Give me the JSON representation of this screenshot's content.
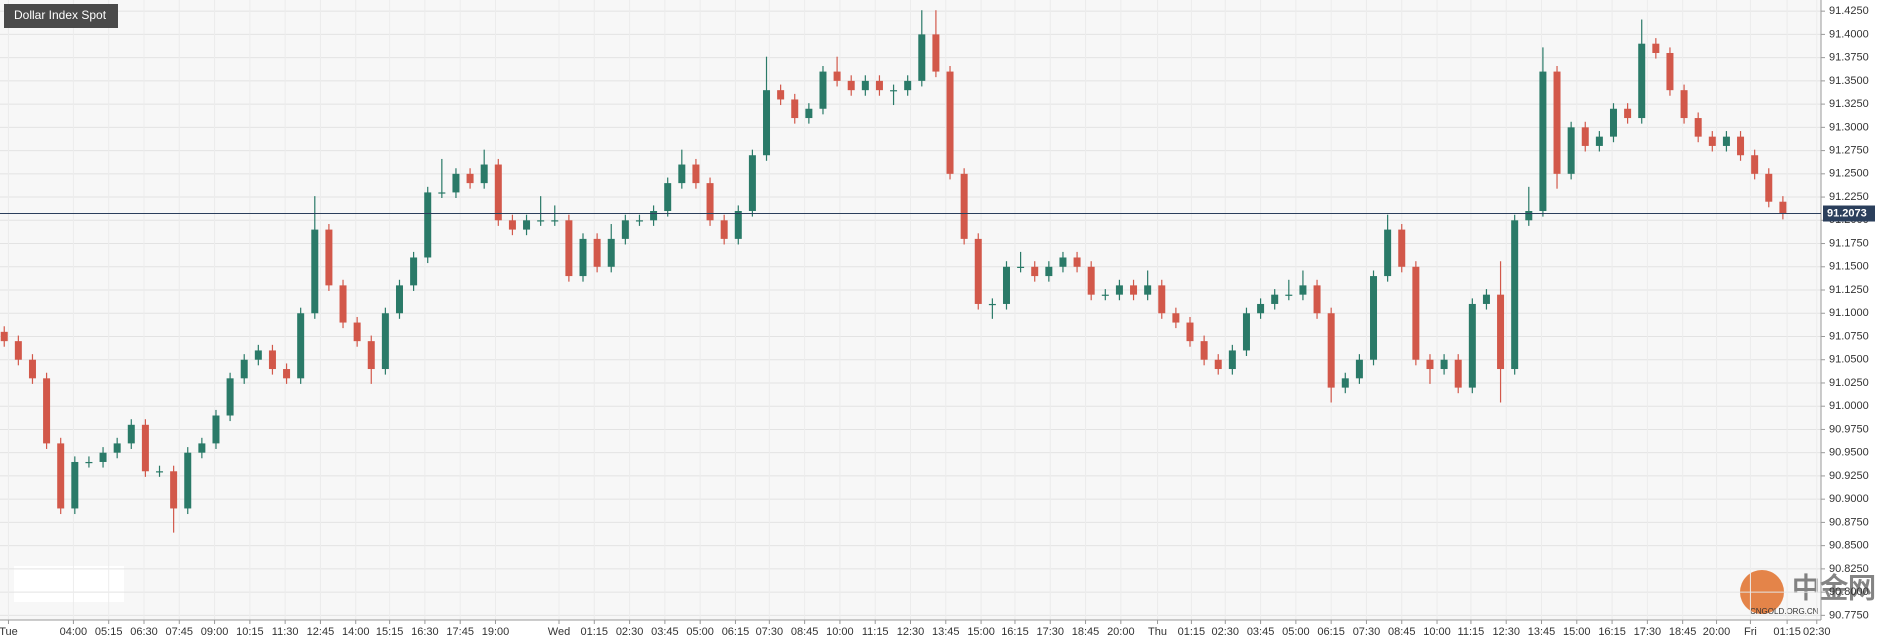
{
  "chart_data": {
    "type": "candlestick",
    "title": "Dollar Index Spot",
    "x": [
      0,
      1,
      2,
      3,
      4,
      5,
      6,
      7,
      8,
      9,
      10,
      11,
      12,
      13,
      14,
      15,
      16,
      17,
      18,
      19,
      20,
      21,
      22,
      23,
      24,
      25,
      26,
      27,
      28,
      29,
      30,
      31,
      32,
      33,
      34,
      35,
      36,
      37,
      38,
      39,
      40,
      41,
      42,
      43,
      44,
      45,
      46,
      47,
      48,
      49,
      50,
      51,
      52,
      53,
      54,
      55,
      56,
      57,
      58,
      59,
      60,
      61,
      62,
      63,
      64,
      65,
      66,
      67,
      68,
      69,
      70,
      71,
      72,
      73,
      74,
      75,
      76,
      77,
      78,
      79,
      80,
      81,
      82,
      83,
      84,
      85,
      86,
      87,
      88,
      89,
      90,
      91,
      92,
      93,
      94,
      95,
      96,
      97,
      98,
      99,
      100,
      101,
      102,
      103,
      104,
      105,
      106,
      107,
      108,
      109,
      110,
      111,
      112,
      113,
      114,
      115,
      116,
      117,
      118,
      119,
      120,
      121,
      122,
      123,
      124,
      125,
      126
    ],
    "open": [
      91.08,
      91.07,
      91.05,
      91.03,
      90.96,
      90.89,
      90.94,
      90.94,
      90.95,
      90.96,
      90.98,
      90.93,
      90.93,
      90.89,
      90.95,
      90.96,
      90.99,
      91.03,
      91.05,
      91.06,
      91.04,
      91.03,
      91.1,
      91.19,
      91.13,
      91.09,
      91.07,
      91.04,
      91.1,
      91.13,
      91.16,
      91.23,
      91.23,
      91.25,
      91.24,
      91.26,
      91.2,
      91.19,
      91.2,
      91.2,
      91.2,
      91.14,
      91.18,
      91.15,
      91.18,
      91.2,
      91.2,
      91.21,
      91.24,
      91.26,
      91.24,
      91.2,
      91.18,
      91.21,
      91.27,
      91.34,
      91.33,
      91.31,
      91.32,
      91.36,
      91.35,
      91.34,
      91.35,
      91.34,
      91.34,
      91.35,
      91.4,
      91.36,
      91.25,
      91.18,
      91.11,
      91.11,
      91.15,
      91.15,
      91.14,
      91.15,
      91.16,
      91.15,
      91.12,
      91.12,
      91.13,
      91.12,
      91.13,
      91.1,
      91.09,
      91.07,
      91.05,
      91.04,
      91.06,
      91.1,
      91.11,
      91.12,
      91.12,
      91.13,
      91.1,
      91.02,
      91.03,
      91.05,
      91.14,
      91.19,
      91.15,
      91.05,
      91.04,
      91.05,
      91.02,
      91.11,
      91.12,
      91.04,
      91.2,
      91.21,
      91.36,
      91.25,
      91.3,
      91.28,
      91.29,
      91.32,
      91.31,
      91.39,
      91.38,
      91.34,
      91.31,
      91.29,
      91.28,
      91.29,
      91.27,
      91.25,
      91.22
    ],
    "high": [
      91.086,
      91.076,
      91.056,
      91.036,
      90.966,
      90.946,
      90.946,
      90.956,
      90.966,
      90.986,
      90.986,
      90.936,
      90.936,
      90.956,
      90.966,
      90.996,
      91.036,
      91.056,
      91.066,
      91.066,
      91.046,
      91.106,
      91.226,
      91.196,
      91.136,
      91.096,
      91.076,
      91.106,
      91.136,
      91.166,
      91.236,
      91.266,
      91.256,
      91.256,
      91.276,
      91.266,
      91.206,
      91.206,
      91.226,
      91.216,
      91.206,
      91.186,
      91.186,
      91.196,
      91.206,
      91.206,
      91.216,
      91.246,
      91.276,
      91.266,
      91.246,
      91.206,
      91.216,
      91.276,
      91.376,
      91.346,
      91.336,
      91.326,
      91.366,
      91.376,
      91.356,
      91.356,
      91.356,
      91.346,
      91.356,
      91.426,
      91.426,
      91.366,
      91.256,
      91.186,
      91.116,
      91.156,
      91.166,
      91.156,
      91.156,
      91.166,
      91.166,
      91.156,
      91.126,
      91.136,
      91.136,
      91.146,
      91.136,
      91.106,
      91.096,
      91.076,
      91.056,
      91.066,
      91.106,
      91.116,
      91.126,
      91.136,
      91.146,
      91.136,
      91.106,
      91.036,
      91.056,
      91.146,
      91.206,
      91.196,
      91.156,
      91.056,
      91.056,
      91.056,
      91.116,
      91.126,
      91.156,
      91.206,
      91.236,
      91.386,
      91.366,
      91.306,
      91.306,
      91.296,
      91.326,
      91.326,
      91.416,
      91.396,
      91.386,
      91.346,
      91.316,
      91.296,
      91.296,
      91.296,
      91.276,
      91.256,
      91.226
    ],
    "low": [
      91.064,
      91.044,
      91.024,
      90.954,
      90.884,
      90.884,
      90.934,
      90.934,
      90.944,
      90.954,
      90.924,
      90.924,
      90.864,
      90.884,
      90.944,
      90.954,
      90.984,
      91.024,
      91.044,
      91.034,
      91.024,
      91.024,
      91.094,
      91.124,
      91.084,
      91.064,
      91.024,
      91.034,
      91.094,
      91.124,
      91.154,
      91.224,
      91.224,
      91.234,
      91.234,
      91.194,
      91.184,
      91.184,
      91.194,
      91.194,
      91.134,
      91.134,
      91.144,
      91.144,
      91.174,
      91.194,
      91.194,
      91.204,
      91.234,
      91.234,
      91.194,
      91.174,
      91.174,
      91.204,
      91.264,
      91.324,
      91.304,
      91.304,
      91.314,
      91.344,
      91.334,
      91.334,
      91.334,
      91.324,
      91.334,
      91.344,
      91.354,
      91.244,
      91.174,
      91.104,
      91.094,
      91.104,
      91.144,
      91.134,
      91.134,
      91.144,
      91.144,
      91.114,
      91.114,
      91.114,
      91.114,
      91.114,
      91.094,
      91.084,
      91.064,
      91.044,
      91.034,
      91.034,
      91.054,
      91.094,
      91.104,
      91.114,
      91.114,
      91.094,
      91.004,
      91.014,
      91.024,
      91.044,
      91.134,
      91.144,
      91.044,
      91.024,
      91.034,
      91.014,
      91.014,
      91.104,
      91.004,
      91.034,
      91.194,
      91.204,
      91.234,
      91.244,
      91.274,
      91.274,
      91.284,
      91.304,
      91.304,
      91.374,
      91.334,
      91.304,
      91.284,
      91.274,
      91.274,
      91.264,
      91.244,
      91.214,
      91.201
    ],
    "close": [
      91.07,
      91.05,
      91.03,
      90.96,
      90.89,
      90.94,
      90.94,
      90.95,
      90.96,
      90.98,
      90.93,
      90.93,
      90.89,
      90.95,
      90.96,
      90.99,
      91.03,
      91.05,
      91.06,
      91.04,
      91.03,
      91.1,
      91.19,
      91.13,
      91.09,
      91.07,
      91.04,
      91.1,
      91.13,
      91.16,
      91.23,
      91.23,
      91.25,
      91.24,
      91.26,
      91.2,
      91.19,
      91.2,
      91.2,
      91.2,
      91.14,
      91.18,
      91.15,
      91.18,
      91.2,
      91.2,
      91.21,
      91.24,
      91.26,
      91.24,
      91.2,
      91.18,
      91.21,
      91.27,
      91.34,
      91.33,
      91.31,
      91.32,
      91.36,
      91.35,
      91.34,
      91.35,
      91.34,
      91.34,
      91.35,
      91.4,
      91.36,
      91.25,
      91.18,
      91.11,
      91.11,
      91.15,
      91.15,
      91.14,
      91.15,
      91.16,
      91.15,
      91.12,
      91.12,
      91.13,
      91.12,
      91.13,
      91.1,
      91.09,
      91.07,
      91.05,
      91.04,
      91.06,
      91.1,
      91.11,
      91.12,
      91.12,
      91.13,
      91.1,
      91.02,
      91.03,
      91.05,
      91.14,
      91.19,
      91.15,
      91.05,
      91.04,
      91.05,
      91.02,
      91.11,
      91.12,
      91.04,
      91.2,
      91.21,
      91.36,
      91.25,
      91.3,
      91.28,
      91.29,
      91.32,
      91.31,
      91.39,
      91.38,
      91.34,
      91.31,
      91.29,
      91.28,
      91.29,
      91.27,
      91.25,
      91.22,
      91.2073
    ],
    "up_color": "#2a7a68",
    "down_color": "#d2584a",
    "last_price": 91.2073,
    "xlim": [
      -0.3,
      128.7
    ],
    "ylim": [
      90.77,
      91.437
    ],
    "yticks": [
      {
        "value": 90.775,
        "label": "90.7750"
      },
      {
        "value": 90.8,
        "label": "90.8000"
      },
      {
        "value": 90.825,
        "label": "90.8250"
      },
      {
        "value": 90.85,
        "label": "90.8500"
      },
      {
        "value": 90.875,
        "label": "90.8750"
      },
      {
        "value": 90.9,
        "label": "90.9000"
      },
      {
        "value": 90.925,
        "label": "90.9250"
      },
      {
        "value": 90.95,
        "label": "90.9500"
      },
      {
        "value": 90.975,
        "label": "90.9750"
      },
      {
        "value": 91,
        "label": "91.0000"
      },
      {
        "value": 91.025,
        "label": "91.0250"
      },
      {
        "value": 91.05,
        "label": "91.0500"
      },
      {
        "value": 91.075,
        "label": "91.0750"
      },
      {
        "value": 91.1,
        "label": "91.1000"
      },
      {
        "value": 91.125,
        "label": "91.1250"
      },
      {
        "value": 91.15,
        "label": "91.1500"
      },
      {
        "value": 91.175,
        "label": "91.1750"
      },
      {
        "value": 91.2,
        "label": "91.2000"
      },
      {
        "value": 91.225,
        "label": "91.2250"
      },
      {
        "value": 91.25,
        "label": "91.2500"
      },
      {
        "value": 91.275,
        "label": "91.2750"
      },
      {
        "value": 91.3,
        "label": "91.3000"
      },
      {
        "value": 91.325,
        "label": "91.3250"
      },
      {
        "value": 91.35,
        "label": "91.3500"
      },
      {
        "value": 91.375,
        "label": "91.3750"
      },
      {
        "value": 91.4,
        "label": "91.4000"
      },
      {
        "value": 91.425,
        "label": "91.4250"
      }
    ],
    "xticks": [
      {
        "value": 0.3,
        "label": "Tue"
      },
      {
        "value": 4.9,
        "label": "04:00"
      },
      {
        "value": 7.4,
        "label": "05:15"
      },
      {
        "value": 9.9,
        "label": "06:30"
      },
      {
        "value": 12.4,
        "label": "07:45"
      },
      {
        "value": 14.9,
        "label": "09:00"
      },
      {
        "value": 17.4,
        "label": "10:15"
      },
      {
        "value": 19.9,
        "label": "11:30"
      },
      {
        "value": 22.4,
        "label": "12:45"
      },
      {
        "value": 24.9,
        "label": "14:00"
      },
      {
        "value": 27.3,
        "label": "15:15"
      },
      {
        "value": 29.8,
        "label": "16:30"
      },
      {
        "value": 32.3,
        "label": "17:45"
      },
      {
        "value": 34.8,
        "label": "19:00"
      },
      {
        "value": 39.3,
        "label": "Wed"
      },
      {
        "value": 41.8,
        "label": "01:15"
      },
      {
        "value": 44.3,
        "label": "02:30"
      },
      {
        "value": 46.8,
        "label": "03:45"
      },
      {
        "value": 49.3,
        "label": "05:00"
      },
      {
        "value": 51.8,
        "label": "06:15"
      },
      {
        "value": 54.2,
        "label": "07:30"
      },
      {
        "value": 56.7,
        "label": "08:45"
      },
      {
        "value": 59.2,
        "label": "10:00"
      },
      {
        "value": 61.7,
        "label": "11:15"
      },
      {
        "value": 64.2,
        "label": "12:30"
      },
      {
        "value": 66.7,
        "label": "13:45"
      },
      {
        "value": 69.2,
        "label": "15:00"
      },
      {
        "value": 71.6,
        "label": "16:15"
      },
      {
        "value": 74.1,
        "label": "17:30"
      },
      {
        "value": 76.6,
        "label": "18:45"
      },
      {
        "value": 79.1,
        "label": "20:00"
      },
      {
        "value": 81.7,
        "label": "Thu"
      },
      {
        "value": 84.1,
        "label": "01:15"
      },
      {
        "value": 86.5,
        "label": "02:30"
      },
      {
        "value": 89.0,
        "label": "03:45"
      },
      {
        "value": 91.5,
        "label": "05:00"
      },
      {
        "value": 94.0,
        "label": "06:15"
      },
      {
        "value": 96.5,
        "label": "07:30"
      },
      {
        "value": 99.0,
        "label": "08:45"
      },
      {
        "value": 101.5,
        "label": "10:00"
      },
      {
        "value": 103.9,
        "label": "11:15"
      },
      {
        "value": 106.4,
        "label": "12:30"
      },
      {
        "value": 108.9,
        "label": "13:45"
      },
      {
        "value": 111.4,
        "label": "15:00"
      },
      {
        "value": 113.9,
        "label": "16:15"
      },
      {
        "value": 116.4,
        "label": "17:30"
      },
      {
        "value": 118.9,
        "label": "18:45"
      },
      {
        "value": 121.3,
        "label": "20:00"
      },
      {
        "value": 123.7,
        "label": "Fri"
      },
      {
        "value": 126.3,
        "label": "01:15"
      },
      {
        "value": 128.4,
        "label": "02:30"
      }
    ],
    "grid": true,
    "watermark": "中金网",
    "watermark_sub": "CNGOLD.ORG.CN"
  }
}
